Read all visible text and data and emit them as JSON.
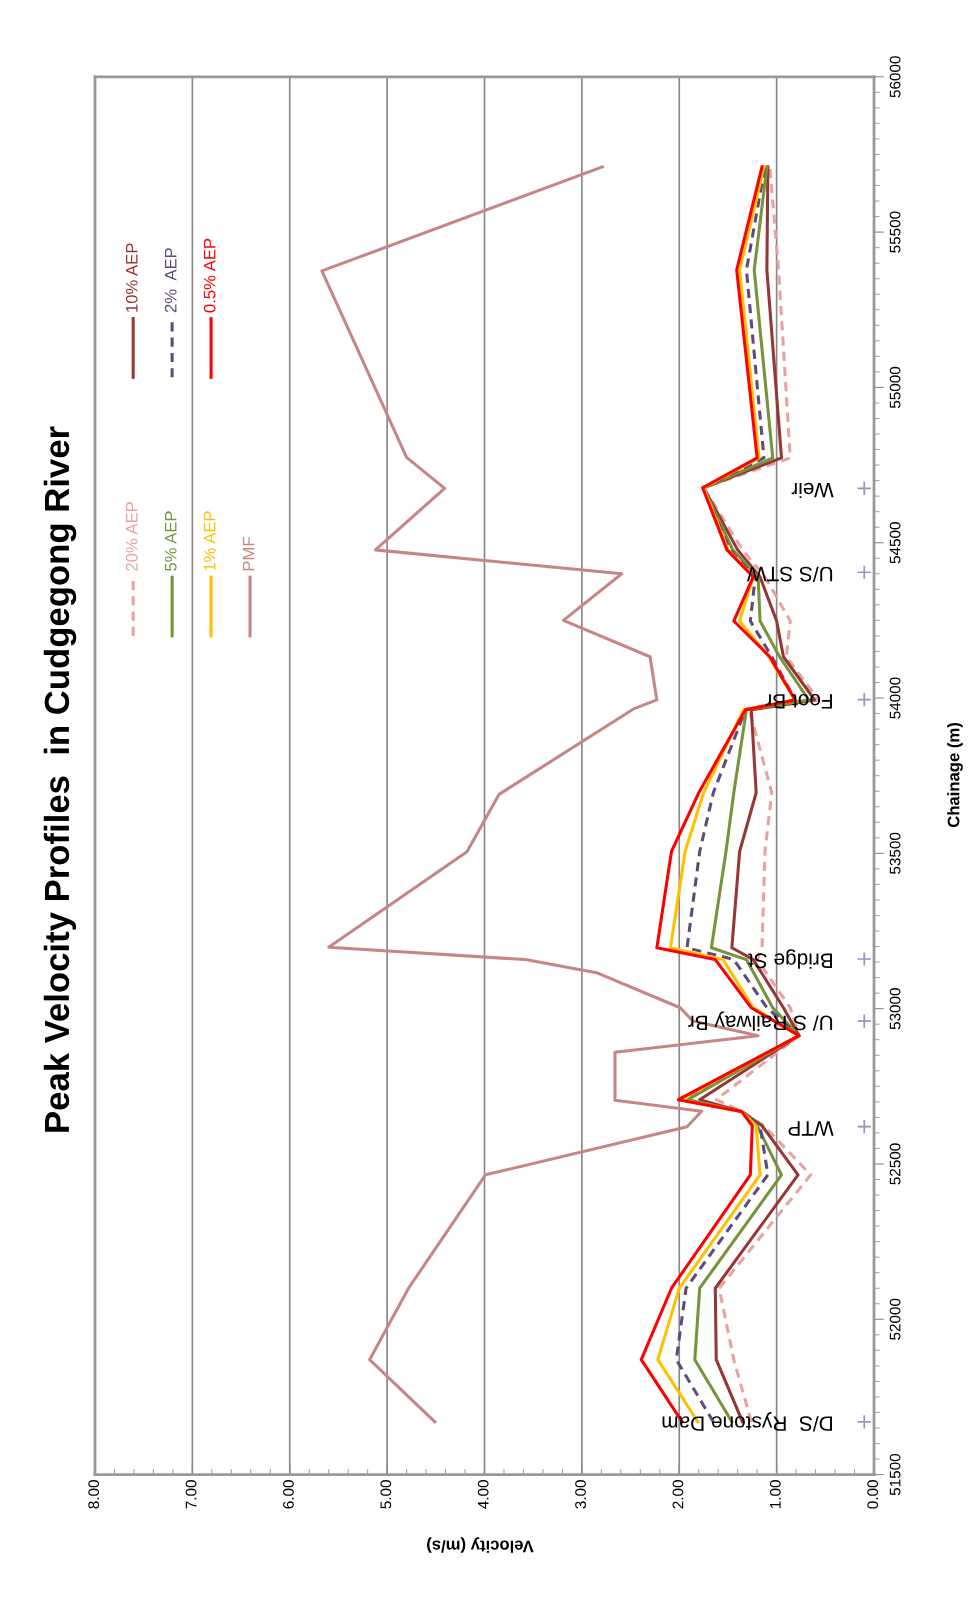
{
  "chart_data": {
    "type": "line",
    "title": "Peak Velocity Profiles  in Cudgegong River",
    "xlabel": "Velocity (m/s)",
    "ylabel": "Chainage (m)",
    "ylim": [
      51500,
      56000
    ],
    "yticks": [
      51500,
      52000,
      52500,
      53000,
      53500,
      54000,
      54500,
      55000,
      55500,
      56000
    ],
    "xlim": [
      8,
      0
    ],
    "xticks": [
      {
        "value": 0,
        "label": "0.00"
      },
      {
        "value": 1,
        "label": "1.00"
      },
      {
        "value": 2,
        "label": "2.00"
      },
      {
        "value": 3,
        "label": "3.00"
      },
      {
        "value": 4,
        "label": "4.00"
      },
      {
        "value": 5,
        "label": "5.00"
      },
      {
        "value": 6,
        "label": "6.00"
      },
      {
        "value": 7,
        "label": "7.00"
      },
      {
        "value": 8,
        "label": "8.00"
      }
    ],
    "grid": "x",
    "legend": "top left",
    "series": [
      {
        "name": "20% AEP",
        "color": "#e6a3a1",
        "line_style": "dashed",
        "values": [
          51670,
          51870,
          52100,
          52465,
          52623,
          52669,
          52707,
          52913,
          53003,
          53158,
          53196,
          53506,
          53695,
          53962,
          53994,
          54133,
          54248,
          54390,
          54477,
          54677,
          54773,
          55378,
          55710
        ],
        "x": [
          1.26,
          1.44,
          1.59,
          0.65,
          1.13,
          1.36,
          1.62,
          0.77,
          0.86,
          1.2,
          1.15,
          1.12,
          1.05,
          1.28,
          0.57,
          0.9,
          0.86,
          1.12,
          1.35,
          1.75,
          0.86,
          0.98,
          1.07
        ]
      },
      {
        "name": "10% AEP",
        "color": "#953735",
        "values": [
          51670,
          51870,
          52100,
          52465,
          52623,
          52669,
          52707,
          52913,
          53003,
          53158,
          53196,
          53506,
          53695,
          53962,
          53994,
          54133,
          54248,
          54390,
          54477,
          54677,
          54773,
          55378,
          55710
        ],
        "x": [
          1.35,
          1.62,
          1.63,
          0.78,
          1.15,
          1.36,
          1.79,
          0.77,
          0.93,
          1.24,
          1.46,
          1.38,
          1.21,
          1.26,
          0.61,
          0.93,
          1.0,
          1.17,
          1.4,
          1.75,
          0.95,
          1.1,
          1.09
        ]
      },
      {
        "name": "5% AEP",
        "color": "#77933c",
        "values": [
          51670,
          51870,
          52100,
          52465,
          52623,
          52669,
          52707,
          52913,
          53003,
          53158,
          53196,
          53506,
          53695,
          53962,
          53994,
          54133,
          54248,
          54390,
          54477,
          54677,
          54773,
          55378,
          55710
        ],
        "x": [
          1.46,
          1.84,
          1.79,
          0.95,
          1.2,
          1.36,
          1.91,
          0.77,
          1.04,
          1.31,
          1.67,
          1.52,
          1.44,
          1.31,
          0.67,
          0.97,
          1.17,
          1.19,
          1.45,
          1.75,
          1.04,
          1.23,
          1.1
        ]
      },
      {
        "name": "2%  AEP",
        "color": "#604a7b",
        "line_style": "dashed",
        "values": [
          51670,
          51870,
          52100,
          52465,
          52623,
          52669,
          52707,
          52913,
          53003,
          53158,
          53196,
          53506,
          53695,
          53962,
          53994,
          54133,
          54248,
          54390,
          54477,
          54677,
          54773,
          55378,
          55710
        ],
        "x": [
          1.65,
          2.03,
          1.93,
          1.09,
          1.17,
          1.36,
          1.98,
          0.77,
          1.1,
          1.44,
          1.92,
          1.79,
          1.65,
          1.32,
          0.81,
          1.05,
          1.27,
          1.22,
          1.48,
          1.75,
          1.13,
          1.31,
          1.12
        ]
      },
      {
        "name": "1% AEP",
        "color": "#ffc000",
        "values": [
          51670,
          51870,
          52100,
          52465,
          52623,
          52669,
          52707,
          52913,
          53003,
          53158,
          53196,
          53506,
          53695,
          53962,
          53994,
          54133,
          54248,
          54390,
          54477,
          54677,
          54773,
          55378,
          55710
        ],
        "x": [
          1.81,
          2.22,
          2.0,
          1.17,
          1.21,
          1.36,
          1.99,
          0.77,
          1.24,
          1.55,
          2.09,
          1.94,
          1.75,
          1.34,
          0.81,
          1.08,
          1.38,
          1.24,
          1.5,
          1.75,
          1.18,
          1.38,
          1.13
        ]
      },
      {
        "name": "0.5% AEP",
        "color": "#ff0000",
        "values": [
          51670,
          51870,
          52100,
          52465,
          52623,
          52669,
          52707,
          52913,
          53003,
          53158,
          53196,
          53506,
          53695,
          53962,
          53994,
          54133,
          54248,
          54390,
          54477,
          54677,
          54773,
          55378,
          55710
        ],
        "x": [
          1.97,
          2.39,
          2.08,
          1.27,
          1.25,
          1.36,
          2.01,
          0.77,
          1.26,
          1.63,
          2.23,
          2.08,
          1.8,
          1.32,
          0.81,
          1.07,
          1.44,
          1.24,
          1.51,
          1.76,
          1.2,
          1.41,
          1.15
        ]
      },
      {
        "name": "PMF",
        "color": "#c68686",
        "values": [
          51670,
          51870,
          52100,
          52465,
          52620,
          52670,
          52705,
          52860,
          52913,
          52960,
          53003,
          53116,
          53158,
          53198,
          53505,
          53690,
          53965,
          53994,
          54133,
          54250,
          54400,
          54477,
          54675,
          54775,
          55375,
          55710
        ],
        "x": [
          4.51,
          5.18,
          4.78,
          3.99,
          1.92,
          1.77,
          2.66,
          2.66,
          1.19,
          1.86,
          1.99,
          2.85,
          3.58,
          5.6,
          4.18,
          3.85,
          2.47,
          2.23,
          2.3,
          3.19,
          2.59,
          5.12,
          4.41,
          4.8,
          5.67,
          2.79
        ]
      },
      {
        "type": "scatter",
        "marker": "cross",
        "color": "#9b8fc0",
        "values": [
          51670,
          52620,
          52960,
          53160,
          53995,
          54405,
          54675
        ],
        "x": [
          0.1,
          0.1,
          0.1,
          0.1,
          0.1,
          0.1,
          0.1
        ]
      }
    ],
    "annotations": [
      "D/S  Rystone Dam",
      "WTP",
      "U/ S Railway Br",
      "Bridge St",
      "Foot Br",
      "U/S STW",
      "Weir"
    ]
  }
}
